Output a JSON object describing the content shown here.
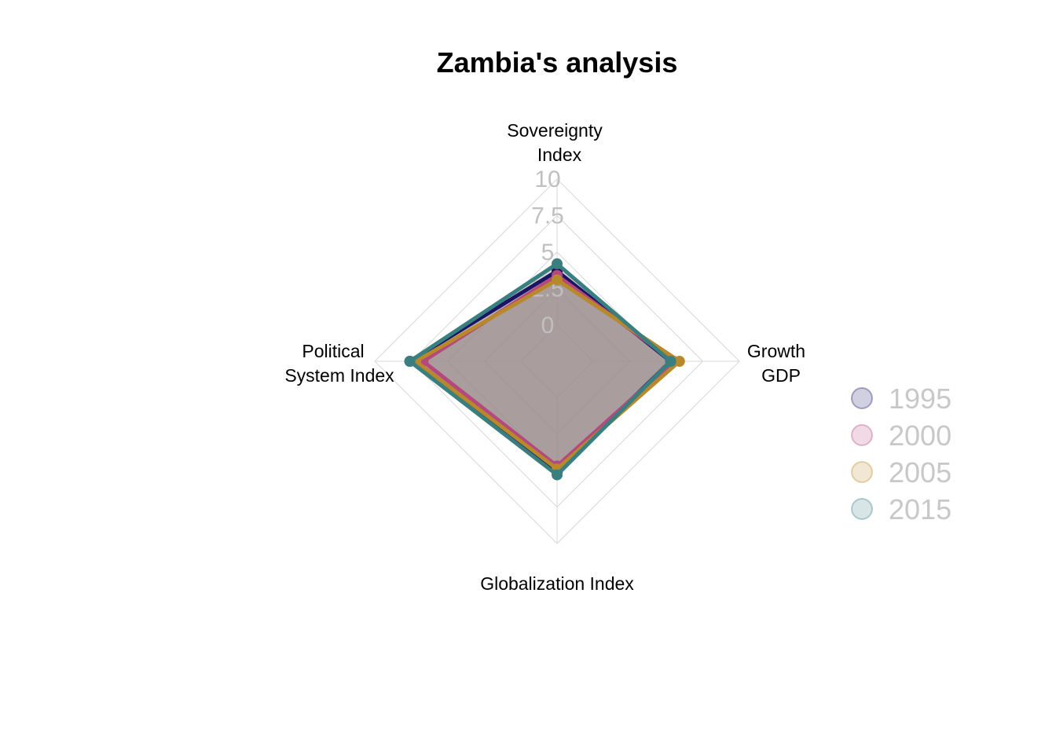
{
  "chart_data": {
    "type": "radar",
    "title": "Zambia's analysis",
    "axes": [
      {
        "lines": [
          "Sovereignty",
          "Index"
        ]
      },
      {
        "lines": [
          "Growth",
          "GDP"
        ]
      },
      {
        "lines": [
          "Globalization Index"
        ]
      },
      {
        "lines": [
          "Political",
          "System Index"
        ]
      }
    ],
    "range": [
      0,
      10
    ],
    "ticks": [
      "0",
      "2.5",
      "5",
      "7.5",
      "10"
    ],
    "grid": true,
    "legend_position": "right",
    "series": [
      {
        "name": "1995",
        "color": "#1b1464",
        "values": [
          3.7,
          5.3,
          5.1,
          7.6
        ]
      },
      {
        "name": "2000",
        "color": "#b5487e",
        "values": [
          3.4,
          5.5,
          4.7,
          6.7
        ]
      },
      {
        "name": "2005",
        "color": "#b8892a",
        "values": [
          3.1,
          5.9,
          4.9,
          7.2
        ]
      },
      {
        "name": "2015",
        "color": "#3a7f80",
        "values": [
          4.2,
          5.3,
          5.3,
          7.6
        ]
      }
    ],
    "fill_color": "#9c8c8c",
    "fill_opacity": 0.7
  }
}
